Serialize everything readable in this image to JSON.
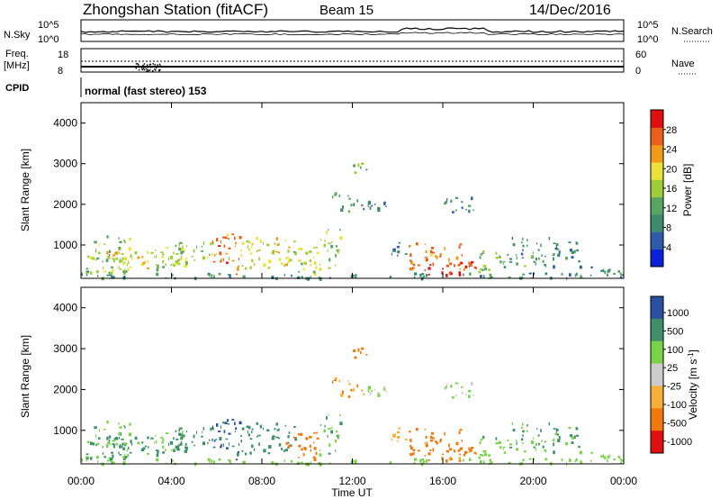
{
  "chart_data": {
    "type": "heatmap",
    "title": "Zhongshan Station (fitACF)",
    "beam_label": "Beam 15",
    "date": "14/Dec/2016",
    "colors": {
      "power": [
        "#0a1fd6",
        "#2e5aa8",
        "#3d8a6e",
        "#5aa463",
        "#9fcc3a",
        "#e9e23a",
        "#f09a1a",
        "#e8601c",
        "#e01010"
      ],
      "velocity": [
        "#e01010",
        "#f07a10",
        "#f5b03a",
        "#cccccc",
        "#7ad24a",
        "#3f8f6a",
        "#2b4e9e"
      ]
    },
    "status": {
      "nsky_label": "N.Sky",
      "nsearch_label": "N.Search",
      "nsky_ticks": [
        "10^5",
        "10^0"
      ],
      "nsearch_ticks": [
        "10^5",
        "10^0"
      ],
      "freq_label_1": "Freq.",
      "freq_label_2": "[MHz]",
      "freq_ticks": [
        "18",
        "8"
      ],
      "nave_label": "Nave",
      "nave_ticks": [
        "60",
        "0"
      ],
      "cpid_label": "CPID",
      "cpid_text": "normal (fast stereo) 153"
    },
    "x_axis": {
      "label": "Time UT",
      "ticks": [
        "00:00",
        "04:00",
        "08:00",
        "12:00",
        "16:00",
        "20:00",
        "00:00"
      ],
      "range_hours": [
        0,
        24
      ]
    },
    "y_axis": {
      "label": "Slant Range [km]",
      "ticks": [
        "1000",
        "2000",
        "3000",
        "4000"
      ],
      "range_km": [
        180,
        4500
      ]
    },
    "power_panel": {
      "colorbar_label": "Power [dB]",
      "colorbar_ticks": [
        "4",
        "8",
        "12",
        "16",
        "20",
        "24",
        "28"
      ]
    },
    "velocity_panel": {
      "colorbar_label": "Velocity [m s",
      "colorbar_label_sup": "-1",
      "colorbar_label_end": "]",
      "colorbar_ticks": [
        "1000",
        "500",
        "100",
        "25",
        "-25",
        "-100",
        "-500",
        "-1000"
      ]
    },
    "patches": [
      {
        "t0": 0.0,
        "t1": 24.0,
        "r0": 200,
        "r1": 330,
        "p": 9,
        "v": 40
      },
      {
        "t0": 0.2,
        "t1": 2.2,
        "r0": 330,
        "r1": 1250,
        "p": 14,
        "v": 120
      },
      {
        "t0": 1.0,
        "t1": 3.0,
        "r0": 400,
        "r1": 900,
        "p": 18,
        "v": 120
      },
      {
        "t0": 3.0,
        "t1": 4.5,
        "r0": 350,
        "r1": 1000,
        "p": 16,
        "v": 100
      },
      {
        "t0": 4.0,
        "t1": 6.0,
        "r0": 500,
        "r1": 1100,
        "p": 15,
        "v": 150
      },
      {
        "t0": 5.8,
        "t1": 7.0,
        "r0": 300,
        "r1": 1300,
        "p": 24,
        "v": 500
      },
      {
        "t0": 7.0,
        "t1": 9.5,
        "r0": 450,
        "r1": 1200,
        "p": 18,
        "v": 300
      },
      {
        "t0": 9.0,
        "t1": 10.5,
        "r0": 300,
        "r1": 1000,
        "p": 16,
        "v": -200
      },
      {
        "t0": 10.5,
        "t1": 11.5,
        "r0": 400,
        "r1": 1400,
        "p": 14,
        "v": 100
      },
      {
        "t0": 11.0,
        "t1": 12.5,
        "r0": 1800,
        "r1": 2300,
        "p": 10,
        "v": -100
      },
      {
        "t0": 12.0,
        "t1": 12.6,
        "r0": 2800,
        "r1": 3100,
        "p": 12,
        "v": -200
      },
      {
        "t0": 12.5,
        "t1": 13.5,
        "r0": 1900,
        "r1": 2100,
        "p": 8,
        "v": 25
      },
      {
        "t0": 13.5,
        "t1": 14.5,
        "r0": 700,
        "r1": 1100,
        "p": 8,
        "v": -60
      },
      {
        "t0": 14.5,
        "t1": 17.0,
        "r0": 400,
        "r1": 1100,
        "p": 24,
        "v": -300
      },
      {
        "t0": 15.0,
        "t1": 17.5,
        "r0": 280,
        "r1": 600,
        "p": 28,
        "v": -150
      },
      {
        "t0": 16.0,
        "t1": 17.5,
        "r0": 1800,
        "r1": 2200,
        "p": 8,
        "v": 25
      },
      {
        "t0": 17.5,
        "t1": 19.0,
        "r0": 350,
        "r1": 900,
        "p": 12,
        "v": 80
      },
      {
        "t0": 19.0,
        "t1": 21.0,
        "r0": 500,
        "r1": 1200,
        "p": 10,
        "v": 100
      },
      {
        "t0": 21.0,
        "t1": 22.0,
        "r0": 600,
        "r1": 1100,
        "p": 8,
        "v": 120
      },
      {
        "t0": 22.0,
        "t1": 24.0,
        "r0": 300,
        "r1": 500,
        "p": 8,
        "v": 40
      }
    ]
  }
}
